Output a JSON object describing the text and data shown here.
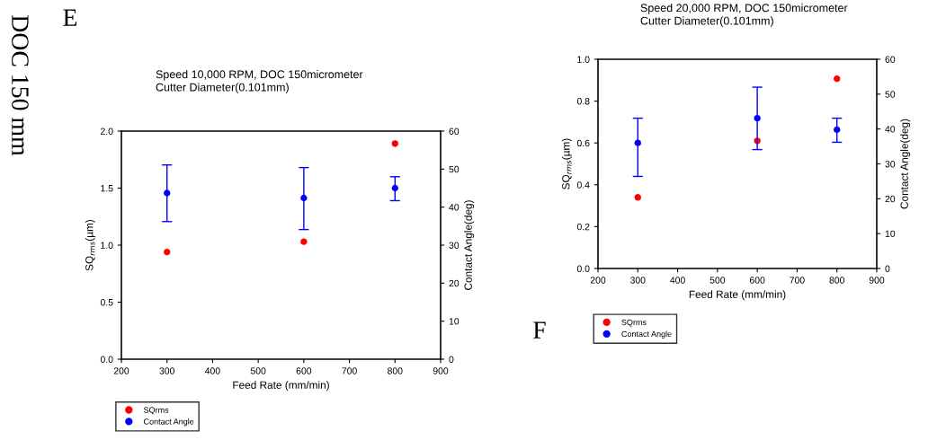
{
  "chart_data": [
    {
      "type": "scatter",
      "title": "Speed 10,000 RPM, DOC 150micrometer\nCutter Diameter(0.101mm)",
      "xlabel": "Feed Rate (mm/min)",
      "ylabel": "SQ$_{rms}$(µm)",
      "y2label": "Contact Angle(deg)",
      "x": [
        300,
        600,
        800
      ],
      "series": [
        {
          "name": "SQrms",
          "color": "#ff0000",
          "values": [
            0.94,
            1.03,
            1.89
          ]
        },
        {
          "name": "Contact Angle",
          "color": "#0000ff",
          "axis": "y2",
          "values": [
            43.7,
            42.4,
            45.0
          ],
          "errors": [
            [
              36.2,
              51.1
            ],
            [
              34.1,
              50.4
            ],
            [
              41.7,
              48.0
            ]
          ]
        }
      ],
      "xlim": [
        200,
        900
      ],
      "xticks": [
        200,
        300,
        400,
        500,
        600,
        700,
        800,
        900
      ],
      "ylim": [
        0,
        2
      ],
      "yticks": [
        {
          "value": 0,
          "label": "0.0"
        },
        0.5,
        {
          "value": 1,
          "label": "1.0"
        },
        1.5,
        {
          "value": 2,
          "label": "2.0"
        }
      ],
      "y2lim": [
        0,
        60
      ],
      "y2ticks": [
        0,
        10,
        20,
        30,
        40,
        50,
        60
      ],
      "marker": "circle",
      "grid": false,
      "legend": "bottom",
      "annotations": [
        "DOC 150 mm",
        "E"
      ]
    },
    {
      "type": "scatter",
      "title": "Speed 20,000 RPM, DOC 150micrometer\nCutter Diameter(0.101mm)",
      "xlabel": "Feed Rate (mm/min)",
      "ylabel": "SQ$_{rms}$(µm)",
      "y2label": "Contact Angle(deg)",
      "x": [
        300,
        600,
        800
      ],
      "series": [
        {
          "name": "SQrms",
          "color": "#ff0000",
          "values": [
            0.34,
            0.61,
            0.907
          ]
        },
        {
          "name": "Contact Angle",
          "color": "#0000ff",
          "axis": "y2",
          "values": [
            36.0,
            43.1,
            39.8
          ],
          "errors": [
            [
              26.4,
              43.1
            ],
            [
              34.1,
              52.0
            ],
            [
              36.2,
              43.1
            ]
          ]
        }
      ],
      "xlim": [
        200,
        900
      ],
      "xticks": [
        200,
        300,
        400,
        500,
        600,
        700,
        800,
        900
      ],
      "ylim": [
        0,
        1
      ],
      "yticks": [
        {
          "value": 0,
          "label": "0.0"
        },
        0.2,
        0.4,
        0.6,
        0.8,
        {
          "value": 1,
          "label": "1.0"
        }
      ],
      "y2lim": [
        0,
        60
      ],
      "y2ticks": [
        0,
        10,
        20,
        30,
        40,
        50,
        60
      ],
      "marker": "circle",
      "grid": false,
      "legend": "bottom",
      "annotations": [
        "F"
      ]
    }
  ]
}
